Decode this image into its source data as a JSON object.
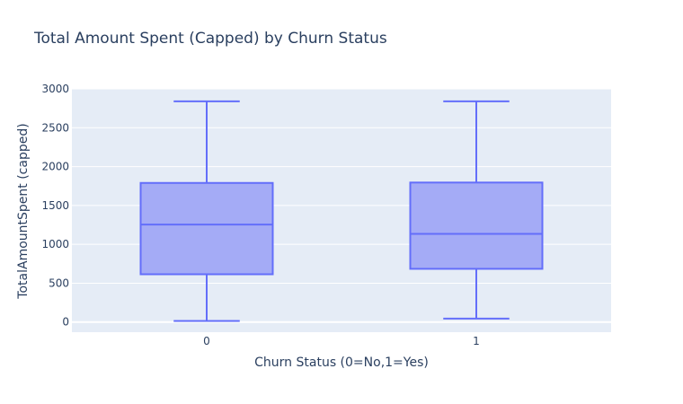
{
  "chart_data": {
    "type": "box",
    "title": "Total Amount Spent (Capped) by Churn Status",
    "xlabel": "Churn Status (0=No,1=Yes)",
    "ylabel": "TotalAmountSpent (capped)",
    "categories": [
      "0",
      "1"
    ],
    "boxes": [
      {
        "category": "0",
        "min": 15,
        "q1": 615,
        "median": 1255,
        "q3": 1790,
        "max": 2840
      },
      {
        "category": "1",
        "min": 45,
        "q1": 685,
        "median": 1135,
        "q3": 1795,
        "max": 2840
      }
    ],
    "ylim": [
      -130,
      3000
    ],
    "yticks": [
      0,
      500,
      1000,
      1500,
      2000,
      2500,
      3000
    ],
    "grid": true,
    "colors": {
      "line": "#636efa",
      "fill": "#a4abf6",
      "plot_bg": "#e5ecf6",
      "grid": "#ffffff"
    }
  }
}
